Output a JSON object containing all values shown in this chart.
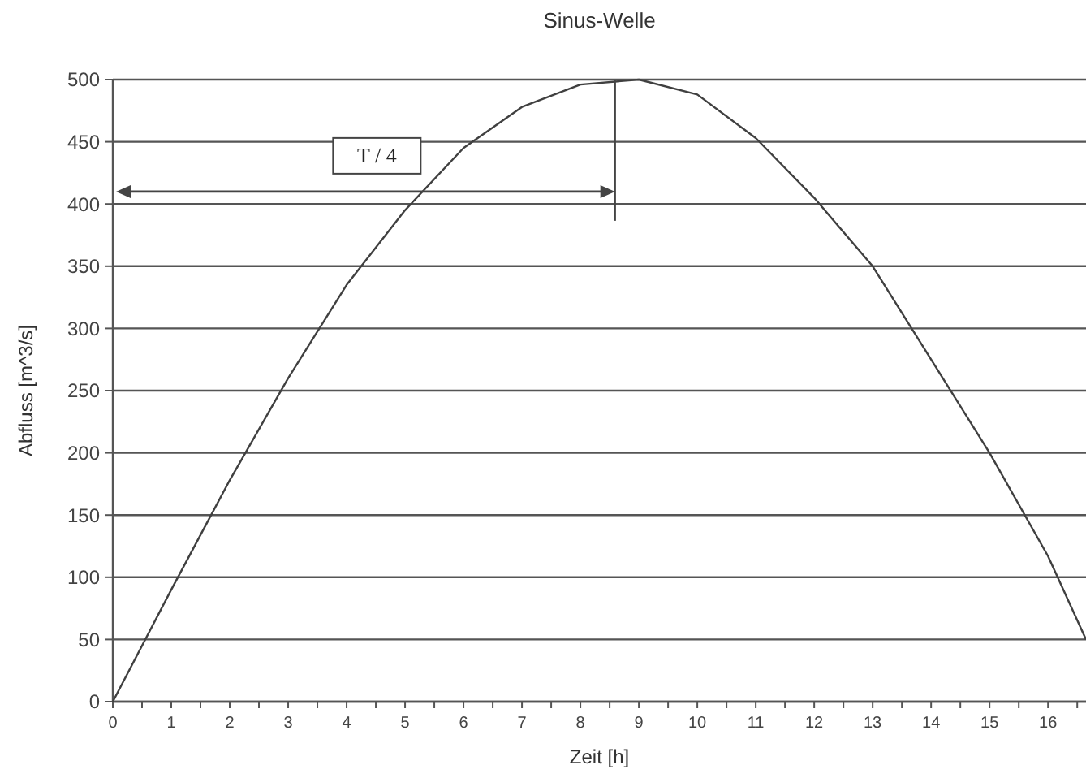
{
  "chart_data": {
    "type": "line",
    "title": "Sinus-Welle",
    "xlabel": "Zeit [h]",
    "ylabel": "Abfluss [m^3/s]",
    "x": [
      0,
      1,
      2,
      3,
      4,
      5,
      6,
      7,
      8,
      9,
      10,
      11,
      12,
      13,
      14,
      15,
      16,
      16.65
    ],
    "series": [
      {
        "color": "#404040",
        "values": [
          0,
          90,
          178,
          260,
          335,
          395,
          445,
          478,
          496,
          500,
          488,
          453,
          405,
          350,
          275,
          200,
          117,
          50
        ]
      }
    ],
    "xlim": [
      0,
      16.65
    ],
    "xticks": [
      0,
      {
        "value": 0.5,
        "label": null
      },
      1,
      {
        "value": 1.5,
        "label": null
      },
      2,
      {
        "value": 2.5,
        "label": null
      },
      3,
      {
        "value": 3.5,
        "label": null
      },
      4,
      {
        "value": 4.5,
        "label": null
      },
      5,
      {
        "value": 5.5,
        "label": null
      },
      6,
      {
        "value": 6.5,
        "label": null
      },
      7,
      {
        "value": 7.5,
        "label": null
      },
      8,
      {
        "value": 8.5,
        "label": null
      },
      9,
      {
        "value": 9.5,
        "label": null
      },
      10,
      {
        "value": 10.5,
        "label": null
      },
      11,
      {
        "value": 11.5,
        "label": null
      },
      12,
      {
        "value": 12.5,
        "label": null
      },
      13,
      {
        "value": 13.5,
        "label": null
      },
      14,
      {
        "value": 14.5,
        "label": null
      },
      15,
      {
        "value": 15.5,
        "label": null
      },
      16,
      {
        "value": 16.5,
        "label": null
      }
    ],
    "ylim": [
      0,
      500
    ],
    "yticks": [
      0,
      50,
      100,
      150,
      200,
      250,
      300,
      350,
      400,
      450,
      500
    ],
    "grid": "y",
    "marker": "none",
    "line_style": "solid",
    "annotations": [
      "T / 4"
    ]
  }
}
